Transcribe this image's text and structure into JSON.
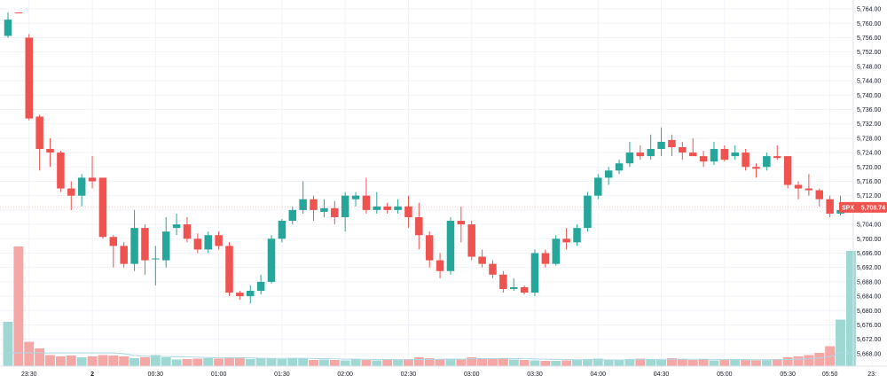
{
  "chart_data": {
    "type": "candlestick",
    "symbol": "SPX",
    "last_price": 5708.74,
    "last_price_label": "5,708.74",
    "ylim": [
      5666,
      5765
    ],
    "y_ticks": [
      5668,
      5672,
      5676,
      5680,
      5684,
      5688,
      5692,
      5696,
      5700,
      5704,
      5708,
      5712,
      5716,
      5720,
      5724,
      5728,
      5732,
      5736,
      5740,
      5744,
      5748,
      5752,
      5756,
      5760,
      5764
    ],
    "y_tick_labels": [
      "5,668.00",
      "5,672.00",
      "5,676.00",
      "5,680.00",
      "5,684.00",
      "5,688.00",
      "5,692.00",
      "5,696.00",
      "5,700.00",
      "5,704.00",
      "5,708.00",
      "5,712.00",
      "5,716.00",
      "5,720.00",
      "5,724.00",
      "5,728.00",
      "5,732.00",
      "5,736.00",
      "5,740.00",
      "5,744.00",
      "5,748.00",
      "5,752.00",
      "5,756.00",
      "5,760.00",
      "5,764.00"
    ],
    "x_ticks": [
      {
        "index": 2,
        "label": "23:30"
      },
      {
        "index": 8,
        "label": "2"
      },
      {
        "index": 14,
        "label": "00:30"
      },
      {
        "index": 20,
        "label": "01:00"
      },
      {
        "index": 26,
        "label": "01:30"
      },
      {
        "index": 32,
        "label": "02:00"
      },
      {
        "index": 38,
        "label": "02:30"
      },
      {
        "index": 44,
        "label": "03:00"
      },
      {
        "index": 50,
        "label": "03:30"
      },
      {
        "index": 56,
        "label": "04:00"
      },
      {
        "index": 62,
        "label": "04:30"
      },
      {
        "index": 68,
        "label": "05:00"
      },
      {
        "index": 74,
        "label": "05:30"
      },
      {
        "index": 78,
        "label": "05:50"
      },
      {
        "index": 82,
        "label": "23:"
      }
    ],
    "candles": [
      {
        "o": 5756.5,
        "h": 5763.0,
        "l": 5756.0,
        "c": 5761.0,
        "v": 1.0
      },
      {
        "o": 5763.0,
        "h": 5763.0,
        "l": 5762.9,
        "c": 5762.9,
        "v": 2.7
      },
      {
        "o": 5756.0,
        "h": 5757.0,
        "l": 5733.0,
        "c": 5733.5,
        "v": 0.55
      },
      {
        "o": 5734.0,
        "h": 5734.5,
        "l": 5719.0,
        "c": 5725.0,
        "v": 0.4
      },
      {
        "o": 5725.0,
        "h": 5728.0,
        "l": 5720.0,
        "c": 5724.0,
        "v": 0.25
      },
      {
        "o": 5724.0,
        "h": 5724.5,
        "l": 5713.0,
        "c": 5714.0,
        "v": 0.22
      },
      {
        "o": 5714.0,
        "h": 5716.0,
        "l": 5708.0,
        "c": 5712.0,
        "v": 0.24
      },
      {
        "o": 5712.0,
        "h": 5718.0,
        "l": 5709.0,
        "c": 5717.0,
        "v": 0.2
      },
      {
        "o": 5717.0,
        "h": 5723.0,
        "l": 5714.0,
        "c": 5716.0,
        "v": 0.22
      },
      {
        "o": 5717.0,
        "h": 5717.0,
        "l": 5700.0,
        "c": 5700.5,
        "v": 0.25
      },
      {
        "o": 5700.5,
        "h": 5701.0,
        "l": 5692.0,
        "c": 5698.0,
        "v": 0.24
      },
      {
        "o": 5698.0,
        "h": 5699.0,
        "l": 5692.0,
        "c": 5693.0,
        "v": 0.22
      },
      {
        "o": 5693.0,
        "h": 5708.0,
        "l": 5691.0,
        "c": 5703.0,
        "v": 0.18
      },
      {
        "o": 5703.0,
        "h": 5704.0,
        "l": 5690.0,
        "c": 5694.0,
        "v": 0.2
      },
      {
        "o": 5694.5,
        "h": 5698.0,
        "l": 5687.0,
        "c": 5694.5,
        "v": 0.25
      },
      {
        "o": 5694.0,
        "h": 5706.0,
        "l": 5692.0,
        "c": 5702.0,
        "v": 0.2
      },
      {
        "o": 5703.0,
        "h": 5707.0,
        "l": 5701.0,
        "c": 5704.0,
        "v": 0.15
      },
      {
        "o": 5704.0,
        "h": 5706.0,
        "l": 5699.0,
        "c": 5700.0,
        "v": 0.16
      },
      {
        "o": 5700.0,
        "h": 5701.5,
        "l": 5696.0,
        "c": 5697.0,
        "v": 0.17
      },
      {
        "o": 5697.0,
        "h": 5702.0,
        "l": 5696.0,
        "c": 5701.0,
        "v": 0.18
      },
      {
        "o": 5701.0,
        "h": 5702.0,
        "l": 5697.0,
        "c": 5698.0,
        "v": 0.17
      },
      {
        "o": 5698.0,
        "h": 5699.0,
        "l": 5684.0,
        "c": 5685.0,
        "v": 0.2
      },
      {
        "o": 5685.0,
        "h": 5685.5,
        "l": 5683.0,
        "c": 5684.0,
        "v": 0.2
      },
      {
        "o": 5684.0,
        "h": 5687.0,
        "l": 5682.0,
        "c": 5685.5,
        "v": 0.16
      },
      {
        "o": 5685.5,
        "h": 5690.0,
        "l": 5684.5,
        "c": 5688.0,
        "v": 0.18
      },
      {
        "o": 5688.0,
        "h": 5701.0,
        "l": 5687.5,
        "c": 5700.0,
        "v": 0.17
      },
      {
        "o": 5700.0,
        "h": 5705.5,
        "l": 5699.0,
        "c": 5705.0,
        "v": 0.16
      },
      {
        "o": 5705.0,
        "h": 5709.0,
        "l": 5704.0,
        "c": 5708.0,
        "v": 0.18
      },
      {
        "o": 5708.0,
        "h": 5716.0,
        "l": 5707.0,
        "c": 5711.0,
        "v": 0.17
      },
      {
        "o": 5711.0,
        "h": 5712.0,
        "l": 5705.0,
        "c": 5708.0,
        "v": 0.14
      },
      {
        "o": 5707.5,
        "h": 5711.0,
        "l": 5706.0,
        "c": 5708.5,
        "v": 0.15
      },
      {
        "o": 5708.5,
        "h": 5710.5,
        "l": 5704.0,
        "c": 5706.0,
        "v": 0.14
      },
      {
        "o": 5706.0,
        "h": 5713.0,
        "l": 5702.0,
        "c": 5712.0,
        "v": 0.13
      },
      {
        "o": 5711.0,
        "h": 5713.0,
        "l": 5709.0,
        "c": 5712.0,
        "v": 0.16
      },
      {
        "o": 5712.0,
        "h": 5717.0,
        "l": 5707.0,
        "c": 5708.0,
        "v": 0.14
      },
      {
        "o": 5708.0,
        "h": 5713.0,
        "l": 5707.0,
        "c": 5709.0,
        "v": 0.13
      },
      {
        "o": 5709.0,
        "h": 5710.0,
        "l": 5707.0,
        "c": 5708.0,
        "v": 0.15
      },
      {
        "o": 5708.0,
        "h": 5711.0,
        "l": 5707.0,
        "c": 5709.0,
        "v": 0.14
      },
      {
        "o": 5709.0,
        "h": 5712.0,
        "l": 5703.0,
        "c": 5706.0,
        "v": 0.16
      },
      {
        "o": 5706.0,
        "h": 5710.0,
        "l": 5697.0,
        "c": 5701.0,
        "v": 0.2
      },
      {
        "o": 5701.0,
        "h": 5702.0,
        "l": 5692.0,
        "c": 5694.0,
        "v": 0.18
      },
      {
        "o": 5694.0,
        "h": 5696.0,
        "l": 5689.0,
        "c": 5691.0,
        "v": 0.16
      },
      {
        "o": 5691.0,
        "h": 5706.0,
        "l": 5690.0,
        "c": 5705.0,
        "v": 0.17
      },
      {
        "o": 5705.0,
        "h": 5709.0,
        "l": 5699.0,
        "c": 5704.0,
        "v": 0.15
      },
      {
        "o": 5704.0,
        "h": 5705.0,
        "l": 5694.0,
        "c": 5695.0,
        "v": 0.2
      },
      {
        "o": 5695.0,
        "h": 5697.0,
        "l": 5692.0,
        "c": 5693.0,
        "v": 0.18
      },
      {
        "o": 5693.0,
        "h": 5694.0,
        "l": 5689.0,
        "c": 5690.0,
        "v": 0.16
      },
      {
        "o": 5690.0,
        "h": 5691.0,
        "l": 5685.0,
        "c": 5686.0,
        "v": 0.18
      },
      {
        "o": 5686.0,
        "h": 5689.0,
        "l": 5685.5,
        "c": 5686.5,
        "v": 0.15
      },
      {
        "o": 5686.5,
        "h": 5687.0,
        "l": 5684.5,
        "c": 5685.0,
        "v": 0.14
      },
      {
        "o": 5685.0,
        "h": 5697.0,
        "l": 5684.0,
        "c": 5696.0,
        "v": 0.13
      },
      {
        "o": 5696.0,
        "h": 5697.0,
        "l": 5692.0,
        "c": 5693.0,
        "v": 0.12
      },
      {
        "o": 5693.0,
        "h": 5701.0,
        "l": 5692.5,
        "c": 5700.0,
        "v": 0.12
      },
      {
        "o": 5700.0,
        "h": 5703.0,
        "l": 5697.0,
        "c": 5699.0,
        "v": 0.13
      },
      {
        "o": 5699.0,
        "h": 5704.0,
        "l": 5698.0,
        "c": 5703.0,
        "v": 0.15
      },
      {
        "o": 5703.0,
        "h": 5713.0,
        "l": 5702.0,
        "c": 5712.0,
        "v": 0.16
      },
      {
        "o": 5712.0,
        "h": 5718.0,
        "l": 5711.0,
        "c": 5717.0,
        "v": 0.17
      },
      {
        "o": 5717.0,
        "h": 5720.0,
        "l": 5715.0,
        "c": 5719.0,
        "v": 0.15
      },
      {
        "o": 5719.0,
        "h": 5722.0,
        "l": 5718.0,
        "c": 5721.0,
        "v": 0.14
      },
      {
        "o": 5721.0,
        "h": 5727.0,
        "l": 5720.0,
        "c": 5724.0,
        "v": 0.16
      },
      {
        "o": 5724.0,
        "h": 5726.0,
        "l": 5722.0,
        "c": 5723.0,
        "v": 0.17
      },
      {
        "o": 5723.0,
        "h": 5729.0,
        "l": 5722.0,
        "c": 5725.0,
        "v": 0.15
      },
      {
        "o": 5725.0,
        "h": 5731.0,
        "l": 5723.0,
        "c": 5727.0,
        "v": 0.14
      },
      {
        "o": 5727.5,
        "h": 5729.0,
        "l": 5723.0,
        "c": 5725.5,
        "v": 0.18
      },
      {
        "o": 5725.5,
        "h": 5727.0,
        "l": 5722.0,
        "c": 5724.0,
        "v": 0.15
      },
      {
        "o": 5724.0,
        "h": 5728.0,
        "l": 5723.0,
        "c": 5723.0,
        "v": 0.14
      },
      {
        "o": 5723.0,
        "h": 5724.5,
        "l": 5720.0,
        "c": 5721.5,
        "v": 0.16
      },
      {
        "o": 5721.5,
        "h": 5727.0,
        "l": 5720.5,
        "c": 5725.0,
        "v": 0.13
      },
      {
        "o": 5725.0,
        "h": 5726.0,
        "l": 5721.5,
        "c": 5722.0,
        "v": 0.14
      },
      {
        "o": 5723.0,
        "h": 5726.0,
        "l": 5722.0,
        "c": 5724.0,
        "v": 0.14
      },
      {
        "o": 5724.0,
        "h": 5725.0,
        "l": 5719.0,
        "c": 5720.0,
        "v": 0.15
      },
      {
        "o": 5720.0,
        "h": 5721.0,
        "l": 5717.0,
        "c": 5719.5,
        "v": 0.13
      },
      {
        "o": 5720.0,
        "h": 5724.0,
        "l": 5719.0,
        "c": 5723.0,
        "v": 0.14
      },
      {
        "o": 5723.0,
        "h": 5726.0,
        "l": 5722.0,
        "c": 5722.5,
        "v": 0.16
      },
      {
        "o": 5723.0,
        "h": 5723.0,
        "l": 5714.0,
        "c": 5715.0,
        "v": 0.2
      },
      {
        "o": 5715.0,
        "h": 5716.0,
        "l": 5711.0,
        "c": 5714.0,
        "v": 0.22
      },
      {
        "o": 5714.0,
        "h": 5718.0,
        "l": 5712.0,
        "c": 5713.5,
        "v": 0.25
      },
      {
        "o": 5713.5,
        "h": 5714.0,
        "l": 5709.0,
        "c": 5711.0,
        "v": 0.3
      },
      {
        "o": 5711.0,
        "h": 5712.0,
        "l": 5706.0,
        "c": 5707.0,
        "v": 0.45
      },
      {
        "o": 5707.0,
        "h": 5712.0,
        "l": 5706.5,
        "c": 5708.0,
        "v": 1.05
      },
      {
        "o": 5708.74,
        "h": 5708.9,
        "l": 5708.6,
        "c": 5708.74,
        "v": 2.6
      }
    ],
    "colors": {
      "up": "#26a69a",
      "down": "#ef5350",
      "up_volume": "#9fd8d3",
      "down_volume": "#f5a7a6",
      "grid": "#f0f3fa",
      "price_line": "#ef5350",
      "moving_average": "#add8e6"
    },
    "grid": true
  }
}
